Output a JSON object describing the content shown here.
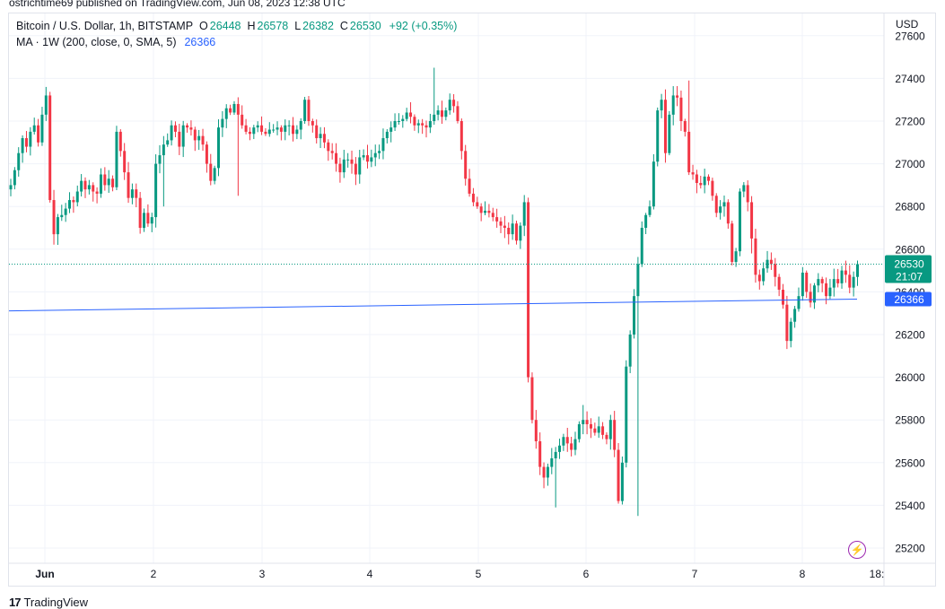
{
  "publish_line": "ostrichtime69 published on TradingView.com, Jun 08, 2023 12:38 UTC",
  "legend": {
    "symbol": "Bitcoin / U.S. Dollar, 1h, BITSTAMP",
    "o_label": "O",
    "o_value": "26448",
    "h_label": "H",
    "h_value": "26578",
    "l_label": "L",
    "l_value": "26382",
    "c_label": "C",
    "c_value": "26530",
    "change": "+92 (+0.35%)",
    "ma_label": "MA · 1W (200, close, 0, SMA, 5)",
    "ma_value": "26366"
  },
  "currency": "USD",
  "price_tag": {
    "price": "26530",
    "countdown": "21:07"
  },
  "ma_tag": "26366",
  "footer": {
    "brand": "TradingView",
    "logo_icon": "tradingview-logo-icon"
  },
  "colors": {
    "up": "#089981",
    "down": "#f23645",
    "ma": "#2962ff",
    "accent_icon": "#9c27b0"
  },
  "chart_data": {
    "type": "candlestick",
    "ylim": [
      25150,
      27850
    ],
    "yticks": [
      25200,
      25400,
      25600,
      25800,
      26000,
      26200,
      26400,
      26600,
      26800,
      27000,
      27200,
      27400,
      27600
    ],
    "xtick_labels": [
      "Jun",
      "2",
      "3",
      "4",
      "5",
      "6",
      "7",
      "8",
      "18:"
    ],
    "grid": true,
    "last_price": 26530,
    "ma_series": {
      "name": "MA · 1W (200, close, 0, SMA, 5)",
      "start": 26311,
      "end": 26366,
      "color": "#2962ff"
    },
    "candles_close": [
      26900,
      26970,
      27050,
      27120,
      27080,
      27150,
      27180,
      27100,
      27230,
      27320,
      26830,
      26670,
      26750,
      26760,
      26790,
      26830,
      26820,
      26870,
      26920,
      26880,
      26900,
      26870,
      26860,
      26950,
      26900,
      26930,
      26890,
      27150,
      27060,
      26960,
      26840,
      26880,
      26840,
      26700,
      26770,
      26720,
      26750,
      27000,
      27040,
      27090,
      27110,
      27180,
      27150,
      27080,
      27180,
      27170,
      27160,
      27110,
      27130,
      27090,
      27000,
      26920,
      26980,
      27170,
      27210,
      27260,
      27240,
      27280,
      27230,
      27180,
      27150,
      27140,
      27170,
      27180,
      27150,
      27140,
      27160,
      27160,
      27170,
      27150,
      27180,
      27180,
      27140,
      27160,
      27200,
      27300,
      27200,
      27180,
      27120,
      27140,
      27100,
      27060,
      27050,
      27000,
      26960,
      27020,
      27020,
      27000,
      26950,
      27030,
      27040,
      27010,
      27030,
      27050,
      27060,
      27120,
      27150,
      27170,
      27200,
      27200,
      27210,
      27240,
      27220,
      27180,
      27190,
      27180,
      27170,
      27200,
      27230,
      27250,
      27220,
      27250,
      27300,
      27270,
      27200,
      27060,
      26930,
      26860,
      26820,
      26800,
      26770,
      26780,
      26770,
      26750,
      26730,
      26710,
      26700,
      26670,
      26720,
      26640,
      26710,
      26820,
      26000,
      25800,
      25700,
      25580,
      25530,
      25580,
      25620,
      25650,
      25680,
      25720,
      25690,
      25660,
      25710,
      25780,
      25800,
      25780,
      25760,
      25740,
      25770,
      25730,
      25710,
      25800,
      25660,
      25420,
      25600,
      26050,
      26200,
      26380,
      26530,
      26700,
      26760,
      26800,
      27010,
      27250,
      27300,
      27050,
      27230,
      27320,
      27310,
      27200,
      27150,
      26960,
      26950,
      26910,
      26900,
      26940,
      26920,
      26850,
      26770,
      26800,
      26820,
      26720,
      26540,
      26590,
      26870,
      26900,
      26820,
      26650,
      26480,
      26450,
      26510,
      26550,
      26530,
      26470,
      26410,
      26340,
      26170,
      26260,
      26320,
      26380,
      26490,
      26400,
      26350,
      26430,
      26460,
      26440,
      26380,
      26420,
      26460,
      26440,
      26500,
      26480,
      26420,
      26470,
      26530
    ]
  }
}
